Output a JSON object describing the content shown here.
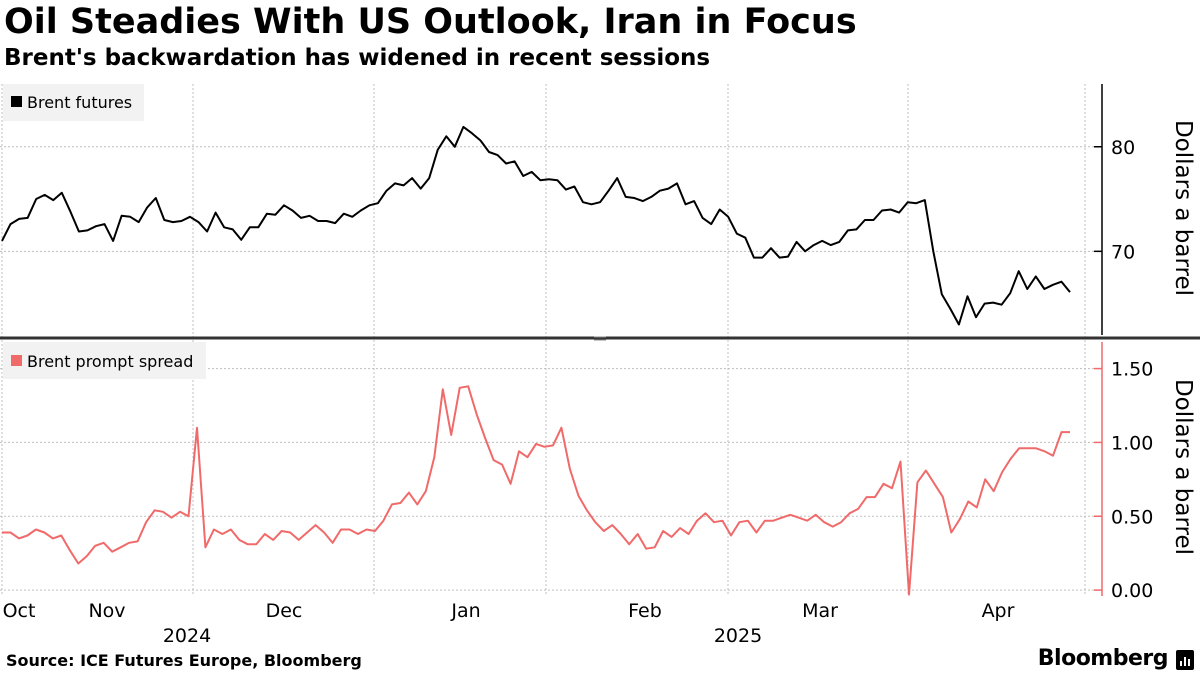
{
  "header": {
    "title": "Oil Steadies With US Outlook, Iran in Focus",
    "subtitle": "Brent's backwardation has widened in recent sessions"
  },
  "footer": {
    "source": "Source: ICE Futures Europe, Bloomberg",
    "brand": "Bloomberg"
  },
  "colors": {
    "futures": "#000000",
    "spread": "#f06a6a",
    "grid": "#bfbfbf",
    "legend_bg": "#f2f2f2"
  },
  "chart_data": [
    {
      "type": "line",
      "legend": "Brent futures",
      "ylabel": "Dollars a barrel",
      "ylim": [
        62,
        86
      ],
      "yticks": [
        70,
        80
      ],
      "color": "#000000",
      "values": [
        71.0,
        72.6,
        73.1,
        73.2,
        75.0,
        75.4,
        74.9,
        75.6,
        73.8,
        71.9,
        72.0,
        72.4,
        72.6,
        71.0,
        73.4,
        73.3,
        72.8,
        74.2,
        75.1,
        73.0,
        72.8,
        72.9,
        73.3,
        72.8,
        71.9,
        73.7,
        72.3,
        72.1,
        71.1,
        72.3,
        72.3,
        73.6,
        73.5,
        74.4,
        73.9,
        73.2,
        73.4,
        72.9,
        72.9,
        72.7,
        73.6,
        73.3,
        73.9,
        74.4,
        74.6,
        75.8,
        76.5,
        76.3,
        77.0,
        76.0,
        77.0,
        79.7,
        81.0,
        80.0,
        81.9,
        81.3,
        80.6,
        79.5,
        79.2,
        78.4,
        78.6,
        77.2,
        77.6,
        76.8,
        76.9,
        76.8,
        75.9,
        76.2,
        74.7,
        74.5,
        74.7,
        75.8,
        77.0,
        75.2,
        75.1,
        74.8,
        75.2,
        75.8,
        76.0,
        76.5,
        74.5,
        74.8,
        73.2,
        72.6,
        74.0,
        73.3,
        71.7,
        71.3,
        69.4,
        69.4,
        70.3,
        69.4,
        69.5,
        70.9,
        70.0,
        70.6,
        71.0,
        70.6,
        70.9,
        72.0,
        72.1,
        73.0,
        73.0,
        73.9,
        74.0,
        73.7,
        74.7,
        74.6,
        74.9,
        70.0,
        65.9,
        64.5,
        63.0,
        65.7,
        63.7,
        65.0,
        65.1,
        64.9,
        66.0,
        68.1,
        66.4,
        67.6,
        66.4,
        66.8,
        67.1,
        66.1
      ],
      "x_month_labels": [
        "Oct",
        "Nov",
        "Dec",
        "Jan",
        "Feb",
        "Mar",
        "Apr"
      ],
      "x_year_labels": [
        "2024",
        "2025"
      ]
    },
    {
      "type": "line",
      "legend": "Brent prompt spread",
      "ylabel": "Dollars a barrel",
      "ylim": [
        -0.04,
        1.68
      ],
      "yticks": [
        0.0,
        0.5,
        1.0,
        1.5
      ],
      "ytick_labels": [
        "0.00",
        "0.50",
        "1.00",
        "1.50"
      ],
      "color": "#f06a6a",
      "values": [
        0.39,
        0.39,
        0.35,
        0.37,
        0.41,
        0.39,
        0.35,
        0.37,
        0.27,
        0.18,
        0.23,
        0.3,
        0.32,
        0.26,
        0.29,
        0.32,
        0.33,
        0.46,
        0.54,
        0.53,
        0.49,
        0.53,
        0.5,
        1.1,
        0.29,
        0.41,
        0.38,
        0.41,
        0.34,
        0.31,
        0.31,
        0.38,
        0.34,
        0.4,
        0.39,
        0.34,
        0.39,
        0.44,
        0.39,
        0.32,
        0.41,
        0.41,
        0.38,
        0.41,
        0.4,
        0.47,
        0.58,
        0.59,
        0.66,
        0.58,
        0.67,
        0.9,
        1.36,
        1.05,
        1.37,
        1.38,
        1.19,
        1.03,
        0.88,
        0.85,
        0.72,
        0.94,
        0.9,
        0.99,
        0.97,
        0.98,
        1.1,
        0.82,
        0.64,
        0.54,
        0.46,
        0.4,
        0.44,
        0.38,
        0.31,
        0.38,
        0.28,
        0.29,
        0.4,
        0.36,
        0.42,
        0.38,
        0.47,
        0.52,
        0.46,
        0.47,
        0.37,
        0.46,
        0.47,
        0.39,
        0.47,
        0.47,
        0.49,
        0.51,
        0.49,
        0.47,
        0.51,
        0.46,
        0.43,
        0.46,
        0.52,
        0.55,
        0.63,
        0.63,
        0.72,
        0.69,
        0.87,
        -0.03,
        0.73,
        0.81,
        0.72,
        0.63,
        0.39,
        0.48,
        0.6,
        0.56,
        0.75,
        0.67,
        0.8,
        0.89,
        0.96,
        0.96,
        0.96,
        0.94,
        0.91,
        1.07,
        1.07
      ],
      "x_month_labels": [
        "Oct",
        "Nov",
        "Dec",
        "Jan",
        "Feb",
        "Mar",
        "Apr"
      ],
      "x_year_labels": [
        "2024",
        "2025"
      ]
    }
  ]
}
